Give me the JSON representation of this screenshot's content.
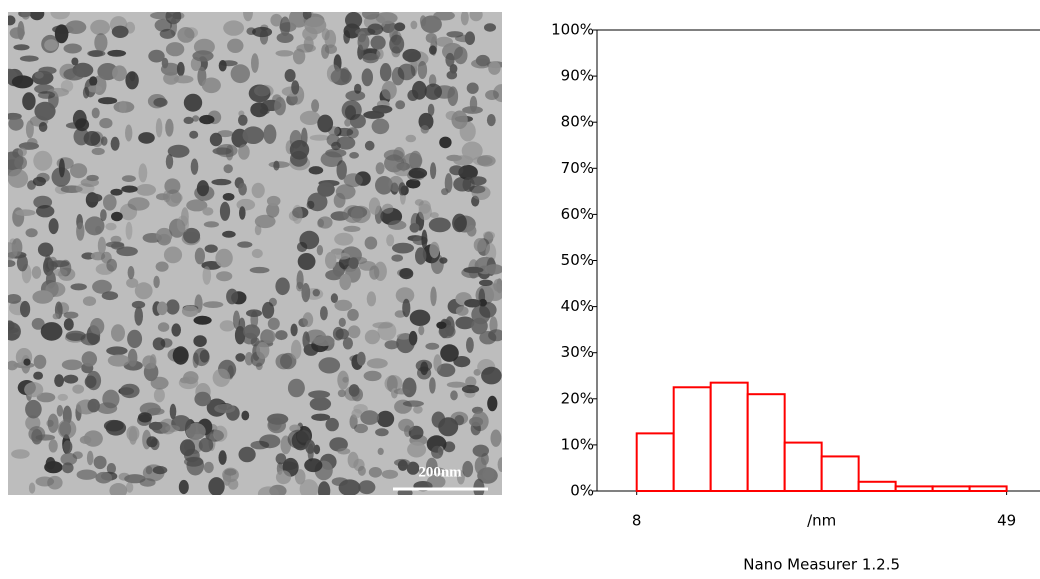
{
  "micrograph": {
    "scale_bar": "200nm"
  },
  "chart_data": {
    "type": "histogram",
    "bins": [
      8,
      12.1,
      16.2,
      20.3,
      24.4,
      28.5,
      32.6,
      36.7,
      40.8,
      44.9,
      49
    ],
    "values": [
      12.5,
      22.5,
      23.5,
      21,
      10.5,
      7.5,
      2,
      1,
      1,
      1
    ],
    "color": "#ff0000",
    "xlim": [
      3.6,
      52.7
    ],
    "xticks": [
      8,
      49
    ],
    "xlabel": "/nm",
    "ylim": [
      0,
      100
    ],
    "yticks": [
      {
        "value": 0,
        "label": "0%"
      },
      {
        "value": 10,
        "label": "10%"
      },
      {
        "value": 20,
        "label": "20%"
      },
      {
        "value": 30,
        "label": "30%"
      },
      {
        "value": 40,
        "label": "40%"
      },
      {
        "value": 50,
        "label": "50%"
      },
      {
        "value": 60,
        "label": "60%"
      },
      {
        "value": 70,
        "label": "70%"
      },
      {
        "value": 80,
        "label": "80%"
      },
      {
        "value": 90,
        "label": "90%"
      },
      {
        "value": 100,
        "label": "100%"
      }
    ],
    "footer": "Nano Measurer 1.2.5"
  }
}
